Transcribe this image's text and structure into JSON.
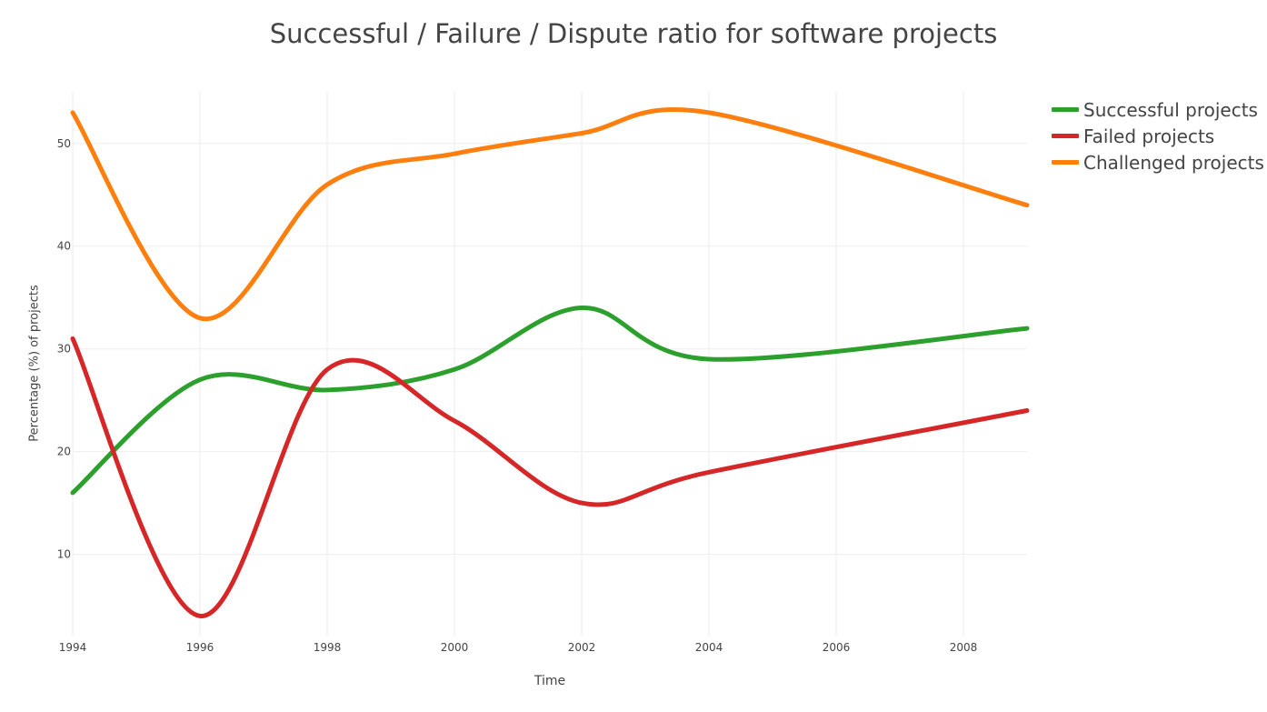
{
  "chart_data": {
    "type": "line",
    "title": "Successful / Failure / Dispute ratio for software projects",
    "xlabel": "Time",
    "ylabel": "Percentage (%) of projects",
    "xlim": [
      1994,
      2009
    ],
    "ylim": [
      2,
      56
    ],
    "xticks": [
      1994,
      1996,
      1998,
      2000,
      2002,
      2004,
      2006,
      2008
    ],
    "yticks": [
      10,
      20,
      30,
      40,
      50
    ],
    "grid": true,
    "legend_position": "top-right",
    "x": [
      1994,
      1996,
      1998,
      2000,
      2002,
      2004,
      2009
    ],
    "series": [
      {
        "name": "Successful projects",
        "color": "#2ca02c",
        "values": [
          16,
          27,
          26,
          28,
          34,
          29,
          32
        ]
      },
      {
        "name": "Failed projects",
        "color": "#d62728",
        "values": [
          31,
          4,
          28,
          23,
          15,
          18,
          24
        ]
      },
      {
        "name": "Challenged projects",
        "color": "#ff7f0e",
        "values": [
          53,
          33,
          46,
          49,
          51,
          53,
          44
        ]
      }
    ]
  }
}
